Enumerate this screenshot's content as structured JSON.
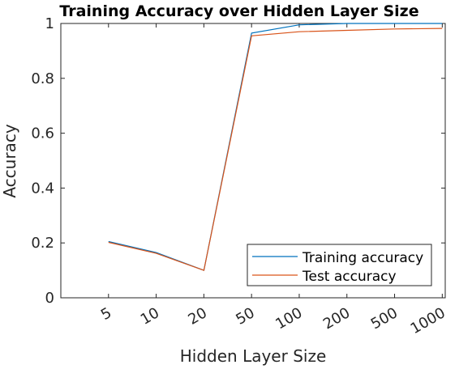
{
  "chart_data": {
    "type": "line",
    "title": "Training Accuracy over Hidden Layer Size",
    "xlabel": "Hidden Layer Size",
    "ylabel": "Accuracy",
    "categories": [
      "5",
      "10",
      "20",
      "50",
      "100",
      "200",
      "500",
      "1000"
    ],
    "ylim": [
      0,
      1
    ],
    "yticks": [
      "0",
      "0.2",
      "0.4",
      "0.6",
      "0.8",
      "1"
    ],
    "grid": false,
    "legend_position": "bottom-right",
    "series": [
      {
        "name": "Training accuracy",
        "color": "#0072BD",
        "values": [
          0.205,
          0.165,
          0.1,
          0.965,
          0.995,
          1.0,
          1.0,
          1.0
        ]
      },
      {
        "name": "Test accuracy",
        "color": "#D95319",
        "values": [
          0.202,
          0.162,
          0.1,
          0.955,
          0.97,
          0.975,
          0.98,
          0.982
        ]
      }
    ]
  }
}
